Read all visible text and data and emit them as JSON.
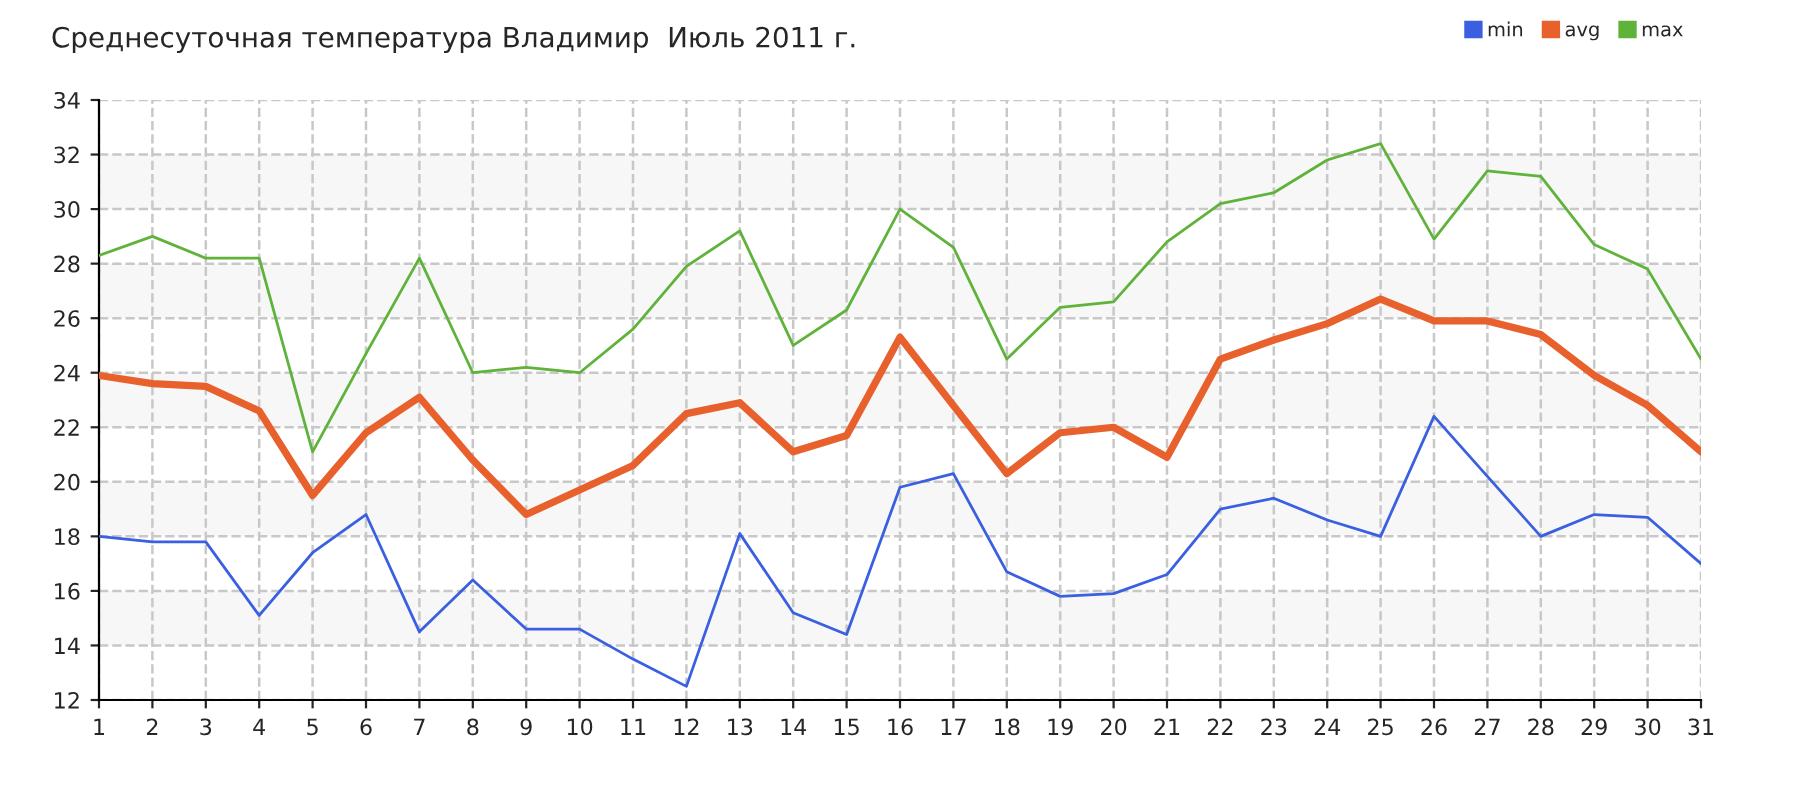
{
  "chart_data": {
    "type": "line",
    "title": "Среднесуточная температура Владимир  Июль 2011 г.",
    "x": [
      1,
      2,
      3,
      4,
      5,
      6,
      7,
      8,
      9,
      10,
      11,
      12,
      13,
      14,
      15,
      16,
      17,
      18,
      19,
      20,
      21,
      22,
      23,
      24,
      25,
      26,
      27,
      28,
      29,
      30,
      31
    ],
    "xlim": [
      1,
      31
    ],
    "xticks": [
      1,
      2,
      3,
      4,
      5,
      6,
      7,
      8,
      9,
      10,
      11,
      12,
      13,
      14,
      15,
      16,
      17,
      18,
      19,
      20,
      21,
      22,
      23,
      24,
      25,
      26,
      27,
      28,
      29,
      30,
      31
    ],
    "ylim": [
      12,
      34
    ],
    "yticks": [
      12,
      14,
      16,
      18,
      20,
      22,
      24,
      26,
      28,
      30,
      32,
      34
    ],
    "grid": true,
    "legend": "top right",
    "line_style": "solid",
    "marker": "none",
    "bands": [
      {
        "axis": "y",
        "from": 14,
        "to": 16,
        "color": "#f7f7f7"
      },
      {
        "axis": "y",
        "from": 18,
        "to": 20,
        "color": "#f7f7f7"
      },
      {
        "axis": "y",
        "from": 22,
        "to": 24,
        "color": "#f7f7f7"
      },
      {
        "axis": "y",
        "from": 26,
        "to": 28,
        "color": "#f7f7f7"
      },
      {
        "axis": "y",
        "from": 30,
        "to": 32,
        "color": "#f7f7f7"
      }
    ],
    "series": [
      {
        "name": "min",
        "color": "#3a5fe0",
        "values": [
          18,
          17.8,
          17.8,
          15.1,
          17.4,
          18.8,
          14.5,
          16.4,
          14.6,
          14.6,
          13.5,
          12.5,
          18.1,
          15.2,
          14.4,
          19.8,
          20.3,
          16.7,
          15.8,
          15.9,
          16.6,
          19.0,
          19.4,
          18.6,
          18.0,
          22.4,
          20.2,
          18.0,
          18.8,
          18.7,
          17.0
        ]
      },
      {
        "name": "avg",
        "color": "#e8602c",
        "values": [
          23.9,
          23.6,
          23.5,
          22.6,
          19.5,
          21.8,
          23.1,
          20.8,
          18.8,
          19.7,
          20.6,
          22.5,
          22.9,
          21.1,
          21.7,
          25.3,
          22.8,
          20.3,
          21.8,
          22.0,
          20.9,
          24.5,
          25.2,
          25.8,
          26.7,
          25.9,
          25.9,
          25.4,
          23.9,
          22.8,
          21.1
        ]
      },
      {
        "name": "max",
        "color": "#5fb33a",
        "values": [
          28.3,
          29.0,
          28.2,
          28.2,
          21.1,
          24.7,
          28.2,
          24.0,
          24.2,
          24.0,
          25.6,
          27.9,
          29.2,
          25.0,
          26.3,
          30.0,
          28.6,
          24.5,
          26.4,
          26.6,
          28.8,
          30.2,
          30.6,
          31.8,
          32.4,
          28.9,
          31.4,
          31.2,
          28.7,
          27.8,
          24.5
        ]
      }
    ]
  }
}
